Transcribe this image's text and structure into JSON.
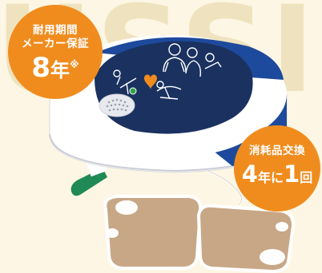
{
  "background_text": "USSI",
  "badge_lifespan": {
    "line1": "耐用期間",
    "line2": "メーカー保証",
    "number": "8",
    "unit": "年",
    "note_mark": "※"
  },
  "badge_consumables": {
    "line1": "消耗品交換",
    "number": "4",
    "middle": "年に",
    "count": "1",
    "suffix": "回"
  },
  "colors": {
    "background": "#fdf6e4",
    "badge_orange": "#f08c1e",
    "device_blue": "#1d4a9c",
    "device_navy": "#1b3260",
    "device_white": "#ffffff",
    "pad_tan": "#c8a786",
    "heart_orange": "#f08c1e",
    "status_green": "#2fa24a",
    "tab_green": "#1f8a56"
  },
  "icons": [
    "aed-device",
    "heart-icon",
    "status-light",
    "speaker-grille",
    "rescuer-pictogram",
    "electrode-pads",
    "connector-tab"
  ]
}
